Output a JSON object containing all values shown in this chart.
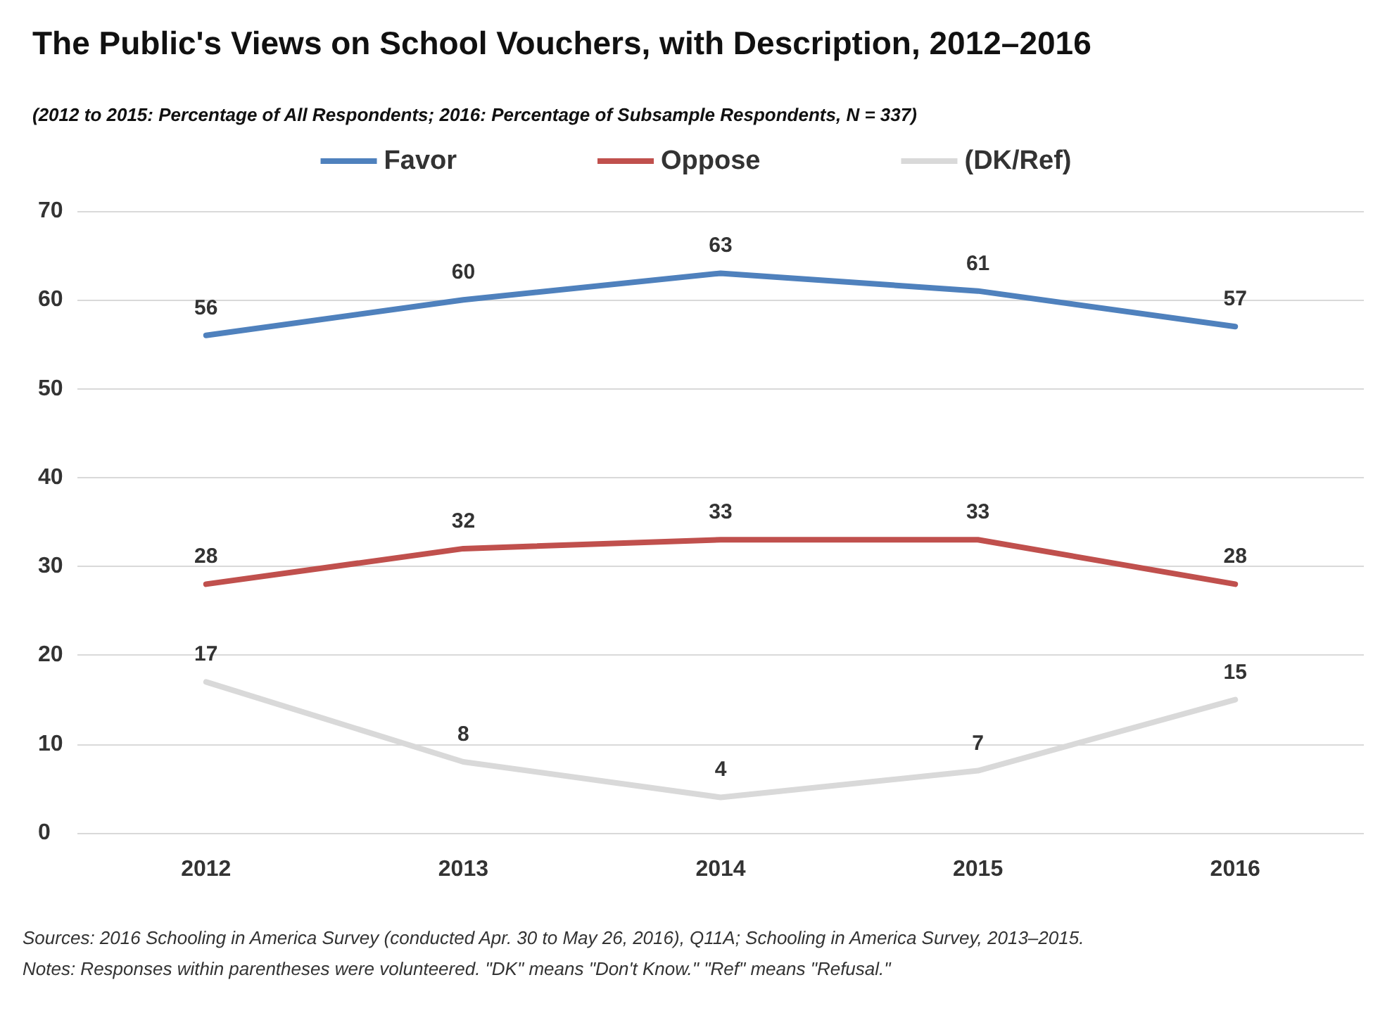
{
  "chart_data": {
    "type": "line",
    "title": "The Public's Views on School Vouchers, with Description, 2012–2016",
    "subtitle": "(2012 to 2015: Percentage of All Respondents; 2016: Percentage of Subsample Respondents, N = 337)",
    "categories": [
      "2012",
      "2013",
      "2014",
      "2015",
      "2016"
    ],
    "series": [
      {
        "name": "Favor",
        "color": "#4f81bd",
        "values": [
          56,
          60,
          63,
          61,
          57
        ]
      },
      {
        "name": "Oppose",
        "color": "#c0504d",
        "values": [
          28,
          32,
          33,
          33,
          28
        ]
      },
      {
        "name": "(DK/Ref)",
        "color": "#d9d9d9",
        "values": [
          17,
          8,
          4,
          7,
          15
        ]
      }
    ],
    "ylim": [
      0,
      70
    ],
    "yticks": [
      0,
      10,
      20,
      30,
      40,
      50,
      60,
      70
    ],
    "grid": "y",
    "legend": "top",
    "marker": "none",
    "line_style": "solid",
    "data_labels": true,
    "annotations": [
      "Sources: 2016 Schooling in America Survey (conducted Apr. 30 to May 26, 2016), Q11A; Schooling in America Survey, 2013–2015.",
      "Notes: Responses within parentheses were volunteered. \"DK\" means \"Don't Know.\" \"Ref\" means \"Refusal.\""
    ]
  }
}
